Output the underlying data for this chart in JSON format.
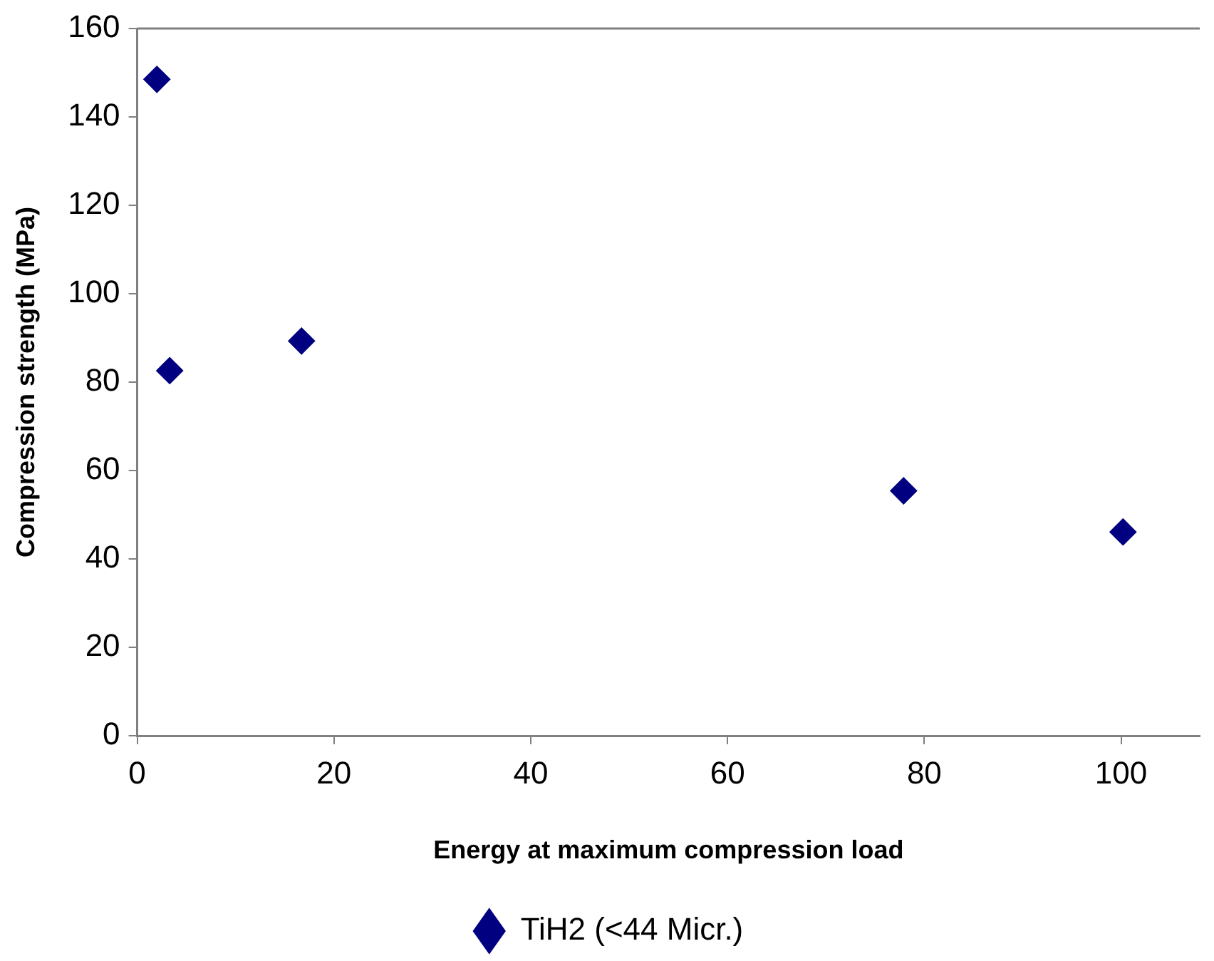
{
  "chart_data": {
    "type": "scatter",
    "xlabel": "Energy at maximum compression load",
    "ylabel": "Compression strength (MPa)",
    "x": [
      2.0,
      3.3,
      16.7,
      77.9,
      100.2
    ],
    "series": [
      {
        "name": "TiH2 (<44 Micr.)",
        "color": "#000080",
        "values": [
          148.5,
          82.6,
          89.3,
          55.4,
          46.1
        ]
      }
    ],
    "xlim": [
      0,
      108
    ],
    "xticks": [
      0,
      20,
      40,
      60,
      80,
      100
    ],
    "ylim": [
      0,
      160
    ],
    "yticks": [
      0,
      20,
      40,
      60,
      80,
      100,
      120,
      140,
      160
    ],
    "grid": false,
    "legend": "bottom",
    "marker": "diamond"
  }
}
